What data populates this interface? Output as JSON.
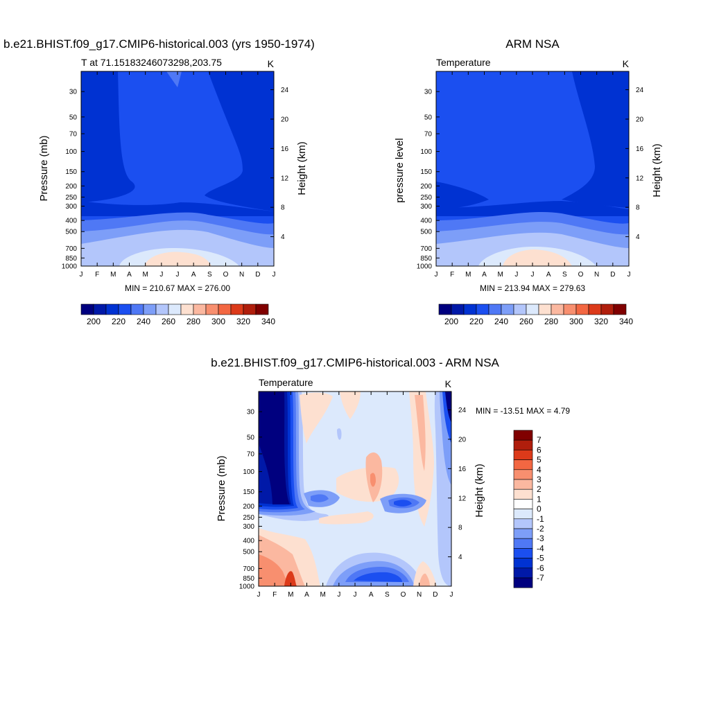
{
  "chart_data": [
    {
      "type": "heatmap",
      "title": "b.e21.BHIST.f09_g17.CMIP6-historical.003 (yrs 1950-1974)",
      "subtitle_left": "T at 71.15183246073298,203.75",
      "subtitle_right": "K",
      "ylabel_left": "Pressure (mb)",
      "ylabel_right": "Height (km)",
      "x_ticks": [
        "J",
        "F",
        "M",
        "A",
        "M",
        "J",
        "J",
        "A",
        "S",
        "O",
        "N",
        "D",
        "J"
      ],
      "y_ticks": [
        "30",
        "50",
        "70",
        "100",
        "150",
        "200",
        "250",
        "300",
        "400",
        "500",
        "700",
        "850",
        "1000"
      ],
      "height_ticks": [
        "24",
        "20",
        "16",
        "12",
        "8",
        "4"
      ],
      "min_max": "MIN = 210.67 MAX = 276.00",
      "colorbar_labels": [
        "200",
        "220",
        "240",
        "260",
        "280",
        "300",
        "320",
        "340"
      ],
      "colorbar_colors": [
        "#00007f",
        "#0019a8",
        "#0032d2",
        "#1b4ff0",
        "#4f78f5",
        "#7d9ef8",
        "#b3c6fb",
        "#dce9fc",
        "#fde0d0",
        "#fbb8a0",
        "#f88f6f",
        "#f36742",
        "#dc3a1a",
        "#b01e0c",
        "#800000"
      ]
    },
    {
      "type": "heatmap",
      "title": "ARM NSA",
      "subtitle_left": "Temperature",
      "subtitle_right": "K",
      "ylabel_left": "pressure level",
      "ylabel_right": "Height (km)",
      "x_ticks": [
        "J",
        "F",
        "M",
        "A",
        "M",
        "J",
        "J",
        "A",
        "S",
        "O",
        "N",
        "D",
        "J"
      ],
      "y_ticks": [
        "30",
        "50",
        "70",
        "100",
        "150",
        "200",
        "250",
        "300",
        "400",
        "500",
        "700",
        "850",
        "1000"
      ],
      "height_ticks": [
        "24",
        "20",
        "16",
        "12",
        "8",
        "4"
      ],
      "min_max": "MIN = 213.94 MAX = 279.63",
      "colorbar_labels": [
        "200",
        "220",
        "240",
        "260",
        "280",
        "300",
        "320",
        "340"
      ],
      "colorbar_colors": [
        "#00007f",
        "#0019a8",
        "#0032d2",
        "#1b4ff0",
        "#4f78f5",
        "#7d9ef8",
        "#b3c6fb",
        "#dce9fc",
        "#fde0d0",
        "#fbb8a0",
        "#f88f6f",
        "#f36742",
        "#dc3a1a",
        "#b01e0c",
        "#800000"
      ]
    },
    {
      "type": "heatmap",
      "title": "b.e21.BHIST.f09_g17.CMIP6-historical.003 - ARM NSA",
      "subtitle_left": "Temperature",
      "subtitle_right": "K",
      "ylabel_left": "Pressure (mb)",
      "ylabel_right": "Height (km)",
      "x_ticks": [
        "J",
        "F",
        "M",
        "A",
        "M",
        "J",
        "J",
        "A",
        "S",
        "O",
        "N",
        "D",
        "J"
      ],
      "y_ticks": [
        "30",
        "50",
        "70",
        "100",
        "150",
        "200",
        "250",
        "300",
        "400",
        "500",
        "700",
        "850",
        "1000"
      ],
      "height_ticks": [
        "24",
        "20",
        "16",
        "12",
        "8",
        "4"
      ],
      "min_max": "MIN = -13.51 MAX =   4.79",
      "colorbar_labels": [
        "7",
        "6",
        "5",
        "4",
        "3",
        "2",
        "1",
        "0",
        "-1",
        "-2",
        "-3",
        "-4",
        "-5",
        "-6",
        "-7"
      ],
      "colorbar_colors": [
        "#800000",
        "#b01e0c",
        "#dc3a1a",
        "#f36742",
        "#f88f6f",
        "#fbb8a0",
        "#fde0d0",
        "#ffffff",
        "#dce9fc",
        "#b3c6fb",
        "#7d9ef8",
        "#4f78f5",
        "#1b4ff0",
        "#0032d2",
        "#0019a8",
        "#00007f"
      ]
    }
  ]
}
